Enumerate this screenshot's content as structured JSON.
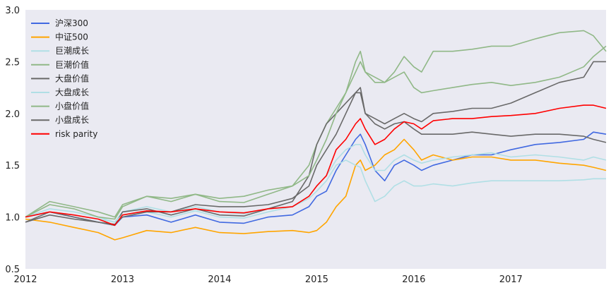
{
  "chart_data": {
    "type": "line",
    "title": "",
    "xlabel": "",
    "ylabel": "",
    "xlim": [
      2012.0,
      2017.98
    ],
    "ylim": [
      0.5,
      3.0
    ],
    "x_ticks": [
      "2012",
      "2013",
      "2014",
      "2015",
      "2016",
      "2017"
    ],
    "y_ticks": [
      "0.5",
      "1.0",
      "1.5",
      "2.0",
      "2.5",
      "3.0"
    ],
    "grid": false,
    "legend_position": "top-left",
    "background": "#eaeaf2",
    "x": [
      2012.0,
      2012.25,
      2012.5,
      2012.75,
      2012.92,
      2013.0,
      2013.25,
      2013.5,
      2013.75,
      2014.0,
      2014.25,
      2014.5,
      2014.75,
      2014.92,
      2015.0,
      2015.1,
      2015.2,
      2015.3,
      2015.4,
      2015.45,
      2015.5,
      2015.6,
      2015.7,
      2015.8,
      2015.9,
      2016.0,
      2016.08,
      2016.2,
      2016.4,
      2016.6,
      2016.8,
      2017.0,
      2017.25,
      2017.5,
      2017.75,
      2017.85,
      2017.98
    ],
    "series": [
      {
        "name": "沪深300",
        "color": "#4169e1",
        "values": [
          1.0,
          1.05,
          1.0,
          0.95,
          0.92,
          1.0,
          1.02,
          0.95,
          1.02,
          0.95,
          0.94,
          1.0,
          1.02,
          1.1,
          1.2,
          1.25,
          1.45,
          1.6,
          1.75,
          1.8,
          1.7,
          1.45,
          1.35,
          1.5,
          1.55,
          1.5,
          1.45,
          1.5,
          1.55,
          1.6,
          1.6,
          1.65,
          1.7,
          1.72,
          1.75,
          1.82,
          1.8
        ]
      },
      {
        "name": "中证500",
        "color": "#ffa500",
        "values": [
          0.98,
          0.95,
          0.9,
          0.85,
          0.78,
          0.8,
          0.87,
          0.85,
          0.9,
          0.85,
          0.84,
          0.86,
          0.87,
          0.85,
          0.87,
          0.95,
          1.1,
          1.2,
          1.5,
          1.55,
          1.45,
          1.5,
          1.6,
          1.65,
          1.75,
          1.65,
          1.55,
          1.6,
          1.55,
          1.58,
          1.58,
          1.55,
          1.55,
          1.52,
          1.5,
          1.48,
          1.45
        ]
      },
      {
        "name": "巨潮成长",
        "color": "#b0dfe5",
        "values": [
          1.0,
          1.08,
          1.05,
          1.0,
          0.95,
          1.05,
          1.1,
          1.05,
          1.1,
          1.05,
          1.03,
          1.08,
          1.1,
          1.18,
          1.25,
          1.35,
          1.5,
          1.55,
          1.5,
          1.48,
          1.35,
          1.15,
          1.2,
          1.3,
          1.35,
          1.3,
          1.3,
          1.32,
          1.3,
          1.33,
          1.35,
          1.35,
          1.35,
          1.35,
          1.36,
          1.37,
          1.37
        ]
      },
      {
        "name": "巨潮价值",
        "color": "#90b887",
        "values": [
          1.0,
          1.12,
          1.08,
          1.0,
          0.98,
          1.1,
          1.2,
          1.15,
          1.22,
          1.15,
          1.14,
          1.22,
          1.3,
          1.5,
          1.7,
          1.9,
          2.05,
          2.2,
          2.4,
          2.5,
          2.4,
          2.3,
          2.3,
          2.35,
          2.4,
          2.25,
          2.2,
          2.22,
          2.25,
          2.28,
          2.3,
          2.27,
          2.3,
          2.35,
          2.45,
          2.55,
          2.65
        ]
      },
      {
        "name": "大盘价值",
        "color": "#696969",
        "values": [
          0.95,
          1.05,
          1.0,
          0.95,
          0.92,
          1.05,
          1.08,
          1.02,
          1.08,
          1.02,
          1.01,
          1.08,
          1.15,
          1.4,
          1.7,
          1.9,
          2.0,
          2.1,
          2.2,
          2.2,
          2.0,
          1.9,
          1.85,
          1.9,
          1.92,
          1.85,
          1.8,
          1.8,
          1.8,
          1.82,
          1.8,
          1.78,
          1.8,
          1.8,
          1.78,
          1.75,
          1.72
        ]
      },
      {
        "name": "大盘成长",
        "color": "#b0dfe5",
        "values": [
          1.0,
          1.05,
          1.02,
          0.98,
          0.95,
          1.02,
          1.05,
          1.0,
          1.06,
          1.0,
          0.99,
          1.05,
          1.1,
          1.2,
          1.3,
          1.4,
          1.55,
          1.65,
          1.7,
          1.7,
          1.6,
          1.45,
          1.45,
          1.55,
          1.6,
          1.55,
          1.52,
          1.55,
          1.58,
          1.6,
          1.62,
          1.58,
          1.6,
          1.58,
          1.55,
          1.58,
          1.55
        ]
      },
      {
        "name": "小盘价值",
        "color": "#90b887",
        "values": [
          1.0,
          1.15,
          1.1,
          1.05,
          1.0,
          1.12,
          1.2,
          1.18,
          1.22,
          1.18,
          1.2,
          1.26,
          1.3,
          1.4,
          1.55,
          1.75,
          2.0,
          2.2,
          2.5,
          2.6,
          2.4,
          2.35,
          2.3,
          2.4,
          2.55,
          2.45,
          2.4,
          2.6,
          2.6,
          2.62,
          2.65,
          2.65,
          2.72,
          2.78,
          2.8,
          2.75,
          2.6
        ]
      },
      {
        "name": "小盘成长",
        "color": "#696969",
        "values": [
          0.95,
          1.02,
          0.98,
          0.95,
          0.93,
          1.0,
          1.05,
          1.05,
          1.12,
          1.1,
          1.1,
          1.12,
          1.18,
          1.3,
          1.5,
          1.65,
          1.8,
          2.0,
          2.2,
          2.25,
          2.0,
          1.95,
          1.9,
          1.95,
          2.0,
          1.95,
          1.92,
          2.0,
          2.02,
          2.05,
          2.05,
          2.1,
          2.2,
          2.3,
          2.35,
          2.5,
          2.5
        ]
      },
      {
        "name": "risk parity",
        "color": "#ff0000",
        "values": [
          1.0,
          1.05,
          1.02,
          0.98,
          0.92,
          1.02,
          1.06,
          1.05,
          1.08,
          1.05,
          1.04,
          1.08,
          1.1,
          1.2,
          1.3,
          1.4,
          1.65,
          1.75,
          1.9,
          1.95,
          1.85,
          1.7,
          1.75,
          1.85,
          1.92,
          1.9,
          1.85,
          1.93,
          1.95,
          1.95,
          1.97,
          1.98,
          2.0,
          2.05,
          2.08,
          2.08,
          2.05
        ]
      }
    ]
  }
}
